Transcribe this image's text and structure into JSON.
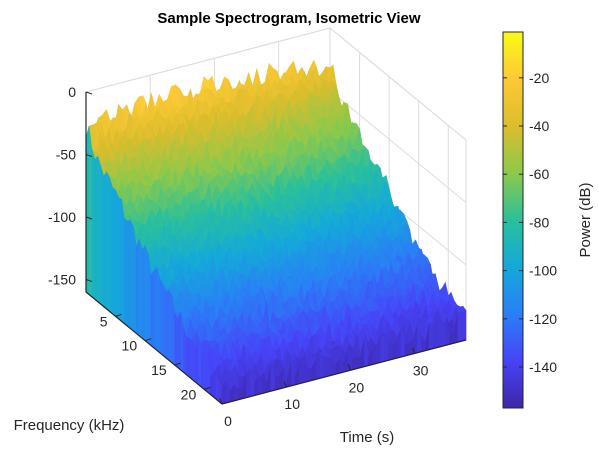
{
  "chart_data": {
    "type": "surface",
    "title": "Sample Spectrogram, Isometric View",
    "xlabel": "Time (s)",
    "ylabel": "Frequency (kHz)",
    "zlabel": "",
    "xlim": [
      0,
      38
    ],
    "ylim": [
      0,
      23
    ],
    "zlim": [
      -160,
      0
    ],
    "x_ticks": [
      "0",
      "10",
      "20",
      "30"
    ],
    "x_tick_values": [
      0,
      10,
      20,
      30
    ],
    "y_ticks": [
      "5",
      "10",
      "15",
      "20"
    ],
    "y_tick_values": [
      5,
      10,
      15,
      20
    ],
    "z_ticks": [
      "0",
      "-50",
      "-100",
      "-150"
    ],
    "z_tick_values": [
      0,
      -50,
      -100,
      -150
    ],
    "grid": true,
    "view": "isometric",
    "surface_profile": {
      "description_of_mean_power_by_frequency": true,
      "frequency_kHz": [
        0,
        2,
        5,
        10,
        15,
        20,
        23
      ],
      "mean_power_dB": [
        -25,
        -45,
        -60,
        -90,
        -115,
        -135,
        -145
      ],
      "time_s": [
        0,
        10,
        20,
        30,
        38
      ],
      "mean_power_dB_at_low_freq": [
        -28,
        -22,
        -20,
        -25,
        -30
      ]
    },
    "colorbar": {
      "label": "Power (dB)",
      "ticks": [
        "-20",
        "-40",
        "-60",
        "-80",
        "-100",
        "-120",
        "-140"
      ],
      "tick_values": [
        -20,
        -40,
        -60,
        -80,
        -100,
        -120,
        -140
      ],
      "range": [
        -157,
        -1
      ],
      "colormap": "parula",
      "colors": [
        "#3e26a8",
        "#4743f8",
        "#2a7ff6",
        "#14a9d9",
        "#2bc09a",
        "#8cc94b",
        "#dcbd2c",
        "#fcc936",
        "#f9fb15"
      ]
    }
  }
}
